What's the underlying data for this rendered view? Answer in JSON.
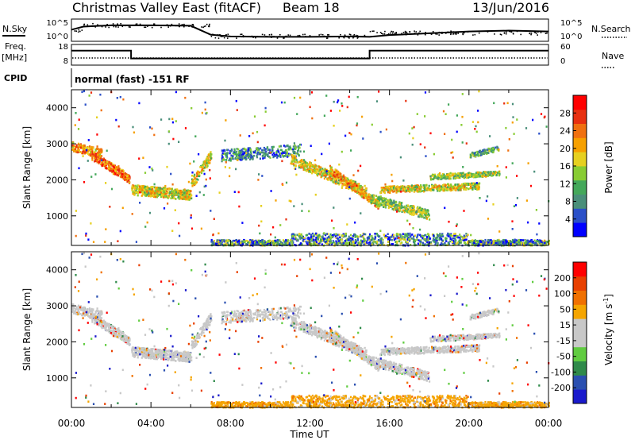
{
  "header": {
    "station": "Christmas Valley East (fitACF)",
    "beam": "Beam 18",
    "date": "13/Jun/2016"
  },
  "panels": {
    "nsky_label": "N.Sky",
    "nsearch_label": "N.Search",
    "freq_label": "Freq.",
    "freq_unit": "[MHz]",
    "nave_label": "Nave",
    "cpid_label": "CPID",
    "cpid_text": "normal (fast) -151 RF",
    "noise_top_left": "10^5",
    "noise_bottom_left": "10^0",
    "noise_top_right": "10^5",
    "noise_bottom_right": "10^0",
    "freq_top": "18",
    "freq_bottom": "8",
    "nave_top": "60",
    "nave_bottom": "0"
  },
  "axes": {
    "slant_label": "Slant Range [km]",
    "xlabel": "Time UT",
    "power_label": "Power [dB]",
    "velocity_label": "Velocity [m s",
    "velocity_sup": "-1",
    "velocity_close": "]"
  },
  "colors": {
    "power": [
      "#0000ff",
      "#2b50c8",
      "#4a8f7a",
      "#44a85a",
      "#88cc33",
      "#e6d020",
      "#f6a000",
      "#f07010",
      "#e83010",
      "#ff0000"
    ],
    "velocity": [
      "#1a1acc",
      "#2a4fb0",
      "#2f8a4a",
      "#60cc40",
      "#c8c8c8",
      "#c8c8c8",
      "#f5a500",
      "#f07000",
      "#e84000",
      "#ff0000"
    ]
  },
  "chart_data": [
    {
      "type": "line",
      "name": "N.Sky noise",
      "x_hours": [
        0,
        0.6,
        2,
        4,
        6,
        7,
        8,
        10,
        12,
        14,
        15,
        16,
        18,
        20,
        22,
        24
      ],
      "y_log10": [
        2.6,
        3.3,
        3.6,
        3.6,
        3.5,
        1.5,
        1.1,
        1.0,
        1.0,
        1.1,
        1.0,
        1.4,
        1.8,
        2.2,
        2.4,
        2.2
      ],
      "ylim_log10": [
        0,
        5
      ]
    },
    {
      "type": "line",
      "name": "Freq",
      "x_hours": [
        0,
        3,
        3,
        15,
        15,
        24
      ],
      "y": [
        15,
        15,
        11.2,
        11.2,
        15,
        15
      ],
      "ylim": [
        8,
        18
      ]
    },
    {
      "type": "heatmap",
      "name": "Power",
      "colorbar_ticks": [
        "28",
        "24",
        "20",
        "16",
        "12",
        "8",
        "4"
      ],
      "yticks": [
        "4000",
        "3000",
        "2000",
        "1000"
      ],
      "xticks": [
        "00:00",
        "04:00",
        "08:00",
        "12:00",
        "16:00",
        "20:00",
        "00:00"
      ],
      "xlim_hours": [
        0,
        24
      ],
      "ylim_km": [
        180,
        4500
      ]
    },
    {
      "type": "heatmap",
      "name": "Velocity",
      "colorbar_ticks": [
        "200",
        "100",
        "50",
        "15",
        "-15",
        "-50",
        "-100",
        "-200"
      ],
      "yticks": [
        "4000",
        "3000",
        "2000",
        "1000"
      ],
      "xticks": [
        "00:00",
        "04:00",
        "08:00",
        "12:00",
        "16:00",
        "20:00",
        "00:00"
      ],
      "xlim_hours": [
        0,
        24
      ],
      "ylim_km": [
        180,
        4500
      ]
    }
  ]
}
